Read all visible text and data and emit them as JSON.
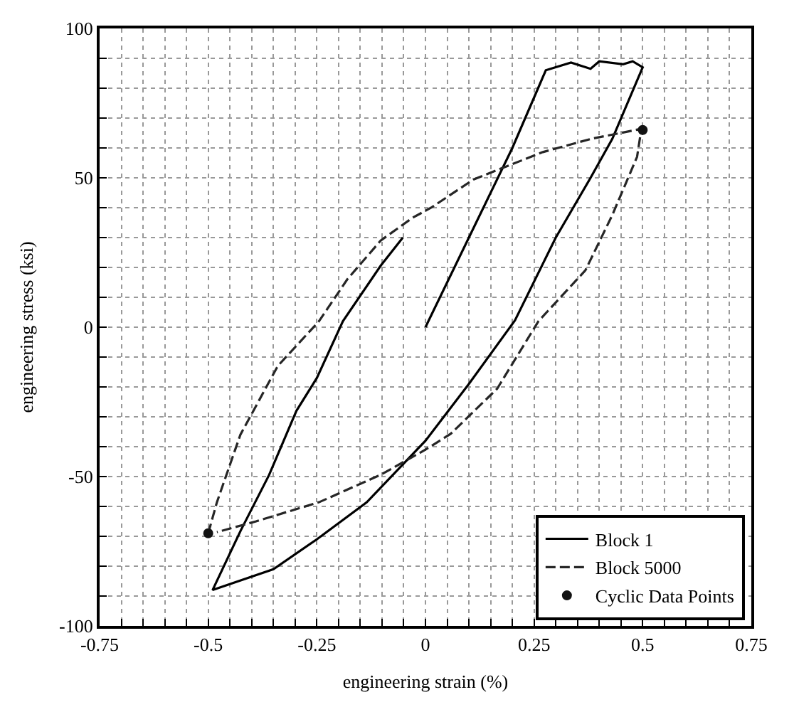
{
  "chart_data": {
    "type": "line",
    "xlabel": "engineering strain (%)",
    "ylabel": "engineering stress (ksi)",
    "xlim": [
      -0.75,
      0.75
    ],
    "ylim": [
      -100,
      100
    ],
    "xticks": [
      -0.75,
      {
        "value": -0.7,
        "label": null
      },
      {
        "value": -0.65,
        "label": null
      },
      {
        "value": -0.6,
        "label": null
      },
      {
        "value": -0.55,
        "label": null
      },
      -0.5,
      {
        "value": -0.45,
        "label": null
      },
      {
        "value": -0.4,
        "label": null
      },
      {
        "value": -0.35,
        "label": null
      },
      {
        "value": -0.3,
        "label": null
      },
      -0.25,
      {
        "value": -0.2,
        "label": null
      },
      {
        "value": -0.15,
        "label": null
      },
      {
        "value": -0.1,
        "label": null
      },
      {
        "value": -0.05,
        "label": null
      },
      0,
      {
        "value": 0.05,
        "label": null
      },
      {
        "value": 0.1,
        "label": null
      },
      {
        "value": 0.15,
        "label": null
      },
      {
        "value": 0.2,
        "label": null
      },
      0.25,
      {
        "value": 0.3,
        "label": null
      },
      {
        "value": 0.35,
        "label": null
      },
      {
        "value": 0.4,
        "label": null
      },
      {
        "value": 0.45,
        "label": null
      },
      0.5,
      {
        "value": 0.55,
        "label": null
      },
      {
        "value": 0.6,
        "label": null
      },
      {
        "value": 0.65,
        "label": null
      },
      {
        "value": 0.7,
        "label": null
      },
      0.75
    ],
    "yticks": [
      -100,
      {
        "value": -90,
        "label": null
      },
      {
        "value": -80,
        "label": null
      },
      {
        "value": -70,
        "label": null
      },
      {
        "value": -60,
        "label": null
      },
      -50,
      {
        "value": -40,
        "label": null
      },
      {
        "value": -30,
        "label": null
      },
      {
        "value": -20,
        "label": null
      },
      {
        "value": -10,
        "label": null
      },
      0,
      {
        "value": 10,
        "label": null
      },
      {
        "value": 20,
        "label": null
      },
      {
        "value": 30,
        "label": null
      },
      {
        "value": 40,
        "label": null
      },
      50,
      {
        "value": 60,
        "label": null
      },
      {
        "value": 70,
        "label": null
      },
      {
        "value": 80,
        "label": null
      },
      {
        "value": 90,
        "label": null
      },
      100
    ],
    "grid": true,
    "legend": "bottom right",
    "series": [
      {
        "name": "Block 1",
        "color": "#000000",
        "line_style": "solid",
        "marker": "none",
        "x": [
          0,
          0.1,
          0.2,
          0.277,
          0.335,
          0.38,
          0.4,
          0.455,
          0.477,
          0.5,
          0.43,
          0.38,
          0.3,
          0.206,
          0.1,
          0,
          -0.135,
          -0.25,
          -0.35,
          -0.49,
          -0.425,
          -0.36,
          -0.297,
          -0.25,
          -0.19,
          -0.103,
          -0.052
        ],
        "values": [
          0,
          30,
          60,
          86,
          88.6,
          86.5,
          89,
          88,
          89,
          87,
          63,
          50,
          30,
          2.3,
          -19,
          -38,
          -58.6,
          -71,
          -81,
          -88,
          -68,
          -49.5,
          -28,
          -17,
          2,
          20.6,
          30
        ]
      },
      {
        "name": "Block 5000",
        "color": "#262626",
        "line_style": "dashed",
        "marker": "none",
        "x": [
          -0.5,
          -0.48,
          -0.426,
          -0.34,
          -0.245,
          -0.18,
          -0.103,
          -0.03,
          0.013,
          0.11,
          0.165,
          0.27,
          0.38,
          0.497,
          0.487,
          0.43,
          0.368,
          0.26,
          0.165,
          0.058,
          0,
          -0.103,
          -0.245,
          -0.39,
          -0.48
        ],
        "values": [
          -69,
          -58.6,
          -36,
          -13,
          2,
          16,
          29,
          36.6,
          40,
          49.4,
          52.6,
          58.6,
          63,
          66.4,
          57,
          37.5,
          19,
          2,
          -20.6,
          -35.7,
          -41,
          -49.4,
          -58.6,
          -65,
          -68.6
        ]
      },
      {
        "name": "Cyclic Data Points",
        "type": "scatter",
        "color": "#121212",
        "marker": "circle",
        "x": [
          0.5,
          -0.5
        ],
        "values": [
          66,
          -69
        ]
      }
    ]
  }
}
